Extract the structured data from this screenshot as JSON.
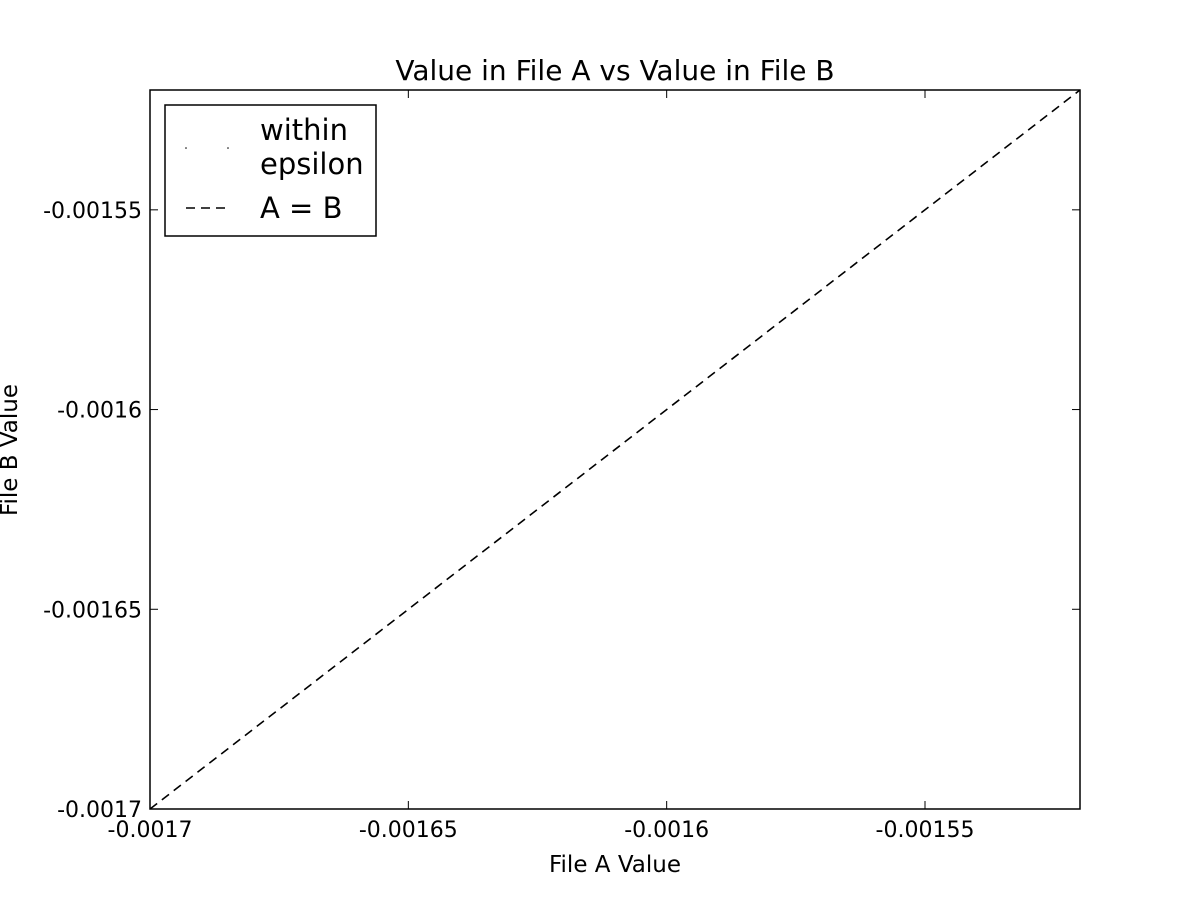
{
  "chart_data": {
    "type": "scatter",
    "title": "Value in File A vs Value in File B",
    "xlabel": "File A Value",
    "ylabel": "File B Value",
    "xlim": [
      -0.0017,
      -0.00152
    ],
    "ylim": [
      -0.0017,
      -0.00152
    ],
    "x_ticks": [
      -0.0017,
      -0.00165,
      -0.0016,
      -0.00155
    ],
    "y_ticks": [
      -0.0017,
      -0.00165,
      -0.0016,
      -0.00155
    ],
    "x_tick_labels": [
      "-0.0017",
      "-0.00165",
      "-0.0016",
      "-0.00155"
    ],
    "y_tick_labels": [
      "-0.0017",
      "-0.00165",
      "-0.0016",
      "-0.00155"
    ],
    "grid": false,
    "legend_position": "top-left",
    "series": [
      {
        "name": "within\nepsilon",
        "type": "scatter",
        "marker": "point",
        "color": "#000000",
        "x": [],
        "y": []
      },
      {
        "name": "A = B",
        "type": "line",
        "style": "dashed",
        "color": "#000000",
        "x": [
          -0.0017,
          -0.00152
        ],
        "y": [
          -0.0017,
          -0.00152
        ]
      }
    ]
  }
}
